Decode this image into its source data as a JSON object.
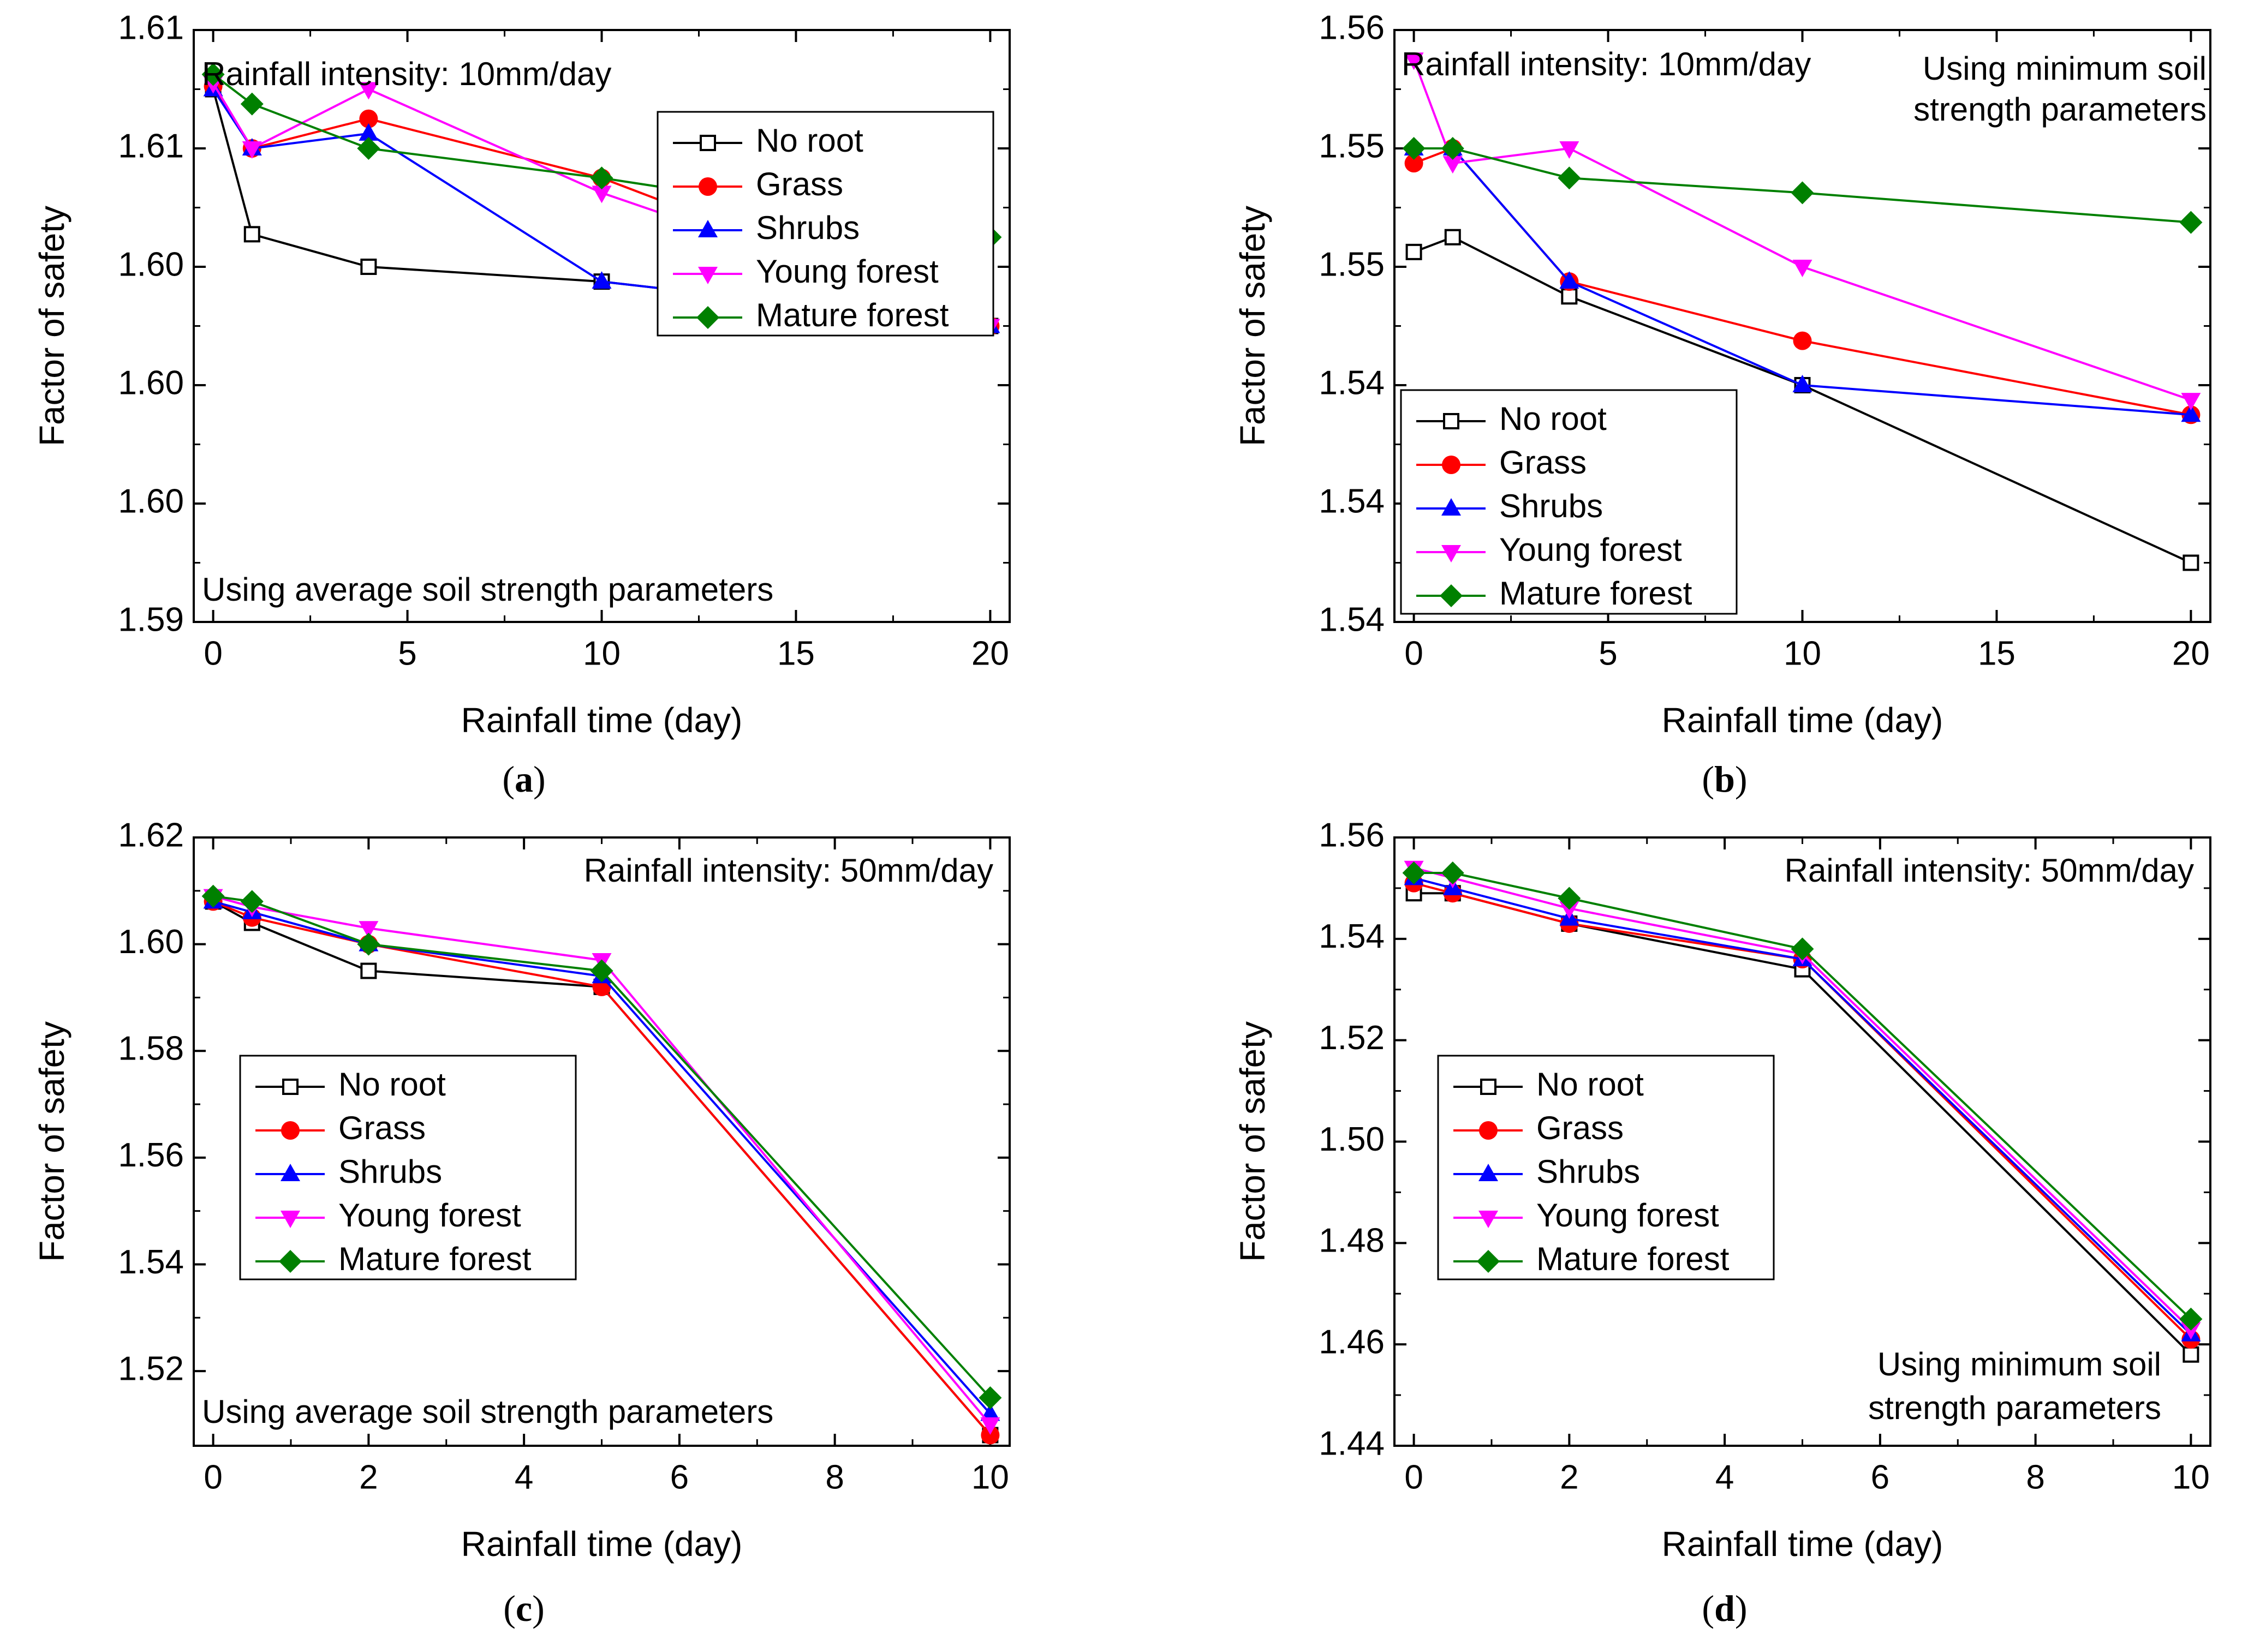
{
  "figure": {
    "panels": [
      {
        "letter": "a",
        "caption_open": "(",
        "caption_close": ")"
      },
      {
        "letter": "b",
        "caption_open": "(",
        "caption_close": ")"
      },
      {
        "letter": "c",
        "caption_open": "(",
        "caption_close": ")"
      },
      {
        "letter": "d",
        "caption_open": "(",
        "caption_close": ")"
      }
    ]
  },
  "chart_data": [
    {
      "type": "line",
      "id": "a",
      "xlabel": "Rainfall time (day)",
      "ylabel": "Factor of safety",
      "xlim": [
        -0.5,
        20.5
      ],
      "ylim": [
        1.59,
        1.61
      ],
      "xticks": [
        0,
        5,
        10,
        15,
        20
      ],
      "xtick_labels": [
        "0",
        "5",
        "10",
        "15",
        "20"
      ],
      "yticks": [
        1.59,
        1.594,
        1.598,
        1.602,
        1.606,
        1.61
      ],
      "ytick_labels": [
        "1.59",
        "1.60",
        "1.60",
        "1.60",
        "1.61",
        "1.61"
      ],
      "annotations": [
        "Rainfall intensity: 10mm/day",
        "Using average soil strength parameters"
      ],
      "legend_position": "top-right",
      "x": [
        0,
        1,
        4,
        10,
        20
      ],
      "series": [
        {
          "name": "No root",
          "color": "#000000",
          "marker": "square-open",
          "values": [
            1.608,
            1.6031,
            1.602,
            1.6015,
            1.6
          ]
        },
        {
          "name": "Grass",
          "color": "#ff0000",
          "marker": "circle",
          "values": [
            1.6081,
            1.606,
            1.607,
            1.605,
            1.6
          ]
        },
        {
          "name": "Shrubs",
          "color": "#0000ff",
          "marker": "triangle-up",
          "values": [
            1.608,
            1.606,
            1.6065,
            1.6015,
            1.6
          ]
        },
        {
          "name": "Young forest",
          "color": "#ff00ff",
          "marker": "triangle-down",
          "values": [
            1.6082,
            1.606,
            1.608,
            1.6045,
            1.6
          ]
        },
        {
          "name": "Mature forest",
          "color": "#008000",
          "marker": "diamond",
          "values": [
            1.6085,
            1.6075,
            1.606,
            1.605,
            1.603
          ]
        }
      ]
    },
    {
      "type": "line",
      "id": "b",
      "xlabel": "Rainfall time (day)",
      "ylabel": "Factor of safety",
      "xlim": [
        -0.5,
        20.5
      ],
      "ylim": [
        1.54,
        1.56
      ],
      "xticks": [
        0,
        5,
        10,
        15,
        20
      ],
      "xtick_labels": [
        "0",
        "5",
        "10",
        "15",
        "20"
      ],
      "yticks": [
        1.54,
        1.544,
        1.548,
        1.552,
        1.556,
        1.56
      ],
      "ytick_labels": [
        "1.54",
        "1.54",
        "1.54",
        "1.55",
        "1.55",
        "1.56"
      ],
      "annotations": [
        "Rainfall intensity: 10mm/day",
        "Using minimum soil",
        "strength parameters"
      ],
      "legend_position": "bottom-left",
      "x": [
        0,
        1,
        4,
        10,
        20
      ],
      "series": [
        {
          "name": "No root",
          "color": "#000000",
          "marker": "square-open",
          "values": [
            1.5525,
            1.553,
            1.551,
            1.548,
            1.542
          ]
        },
        {
          "name": "Grass",
          "color": "#ff0000",
          "marker": "circle",
          "values": [
            1.5555,
            1.556,
            1.5515,
            1.5495,
            1.547
          ]
        },
        {
          "name": "Shrubs",
          "color": "#0000ff",
          "marker": "triangle-up",
          "values": [
            1.556,
            1.556,
            1.5515,
            1.548,
            1.547
          ]
        },
        {
          "name": "Young forest",
          "color": "#ff00ff",
          "marker": "triangle-down",
          "values": [
            1.559,
            1.5555,
            1.556,
            1.552,
            1.5475
          ]
        },
        {
          "name": "Mature forest",
          "color": "#008000",
          "marker": "diamond",
          "values": [
            1.556,
            1.556,
            1.555,
            1.5545,
            1.5535
          ]
        }
      ]
    },
    {
      "type": "line",
      "id": "c",
      "xlabel": "Rainfall time (day)",
      "ylabel": "Factor of safety",
      "xlim": [
        -0.25,
        10.25
      ],
      "ylim": [
        1.506,
        1.62
      ],
      "xticks": [
        0,
        2,
        4,
        6,
        8,
        10
      ],
      "xtick_labels": [
        "0",
        "2",
        "4",
        "6",
        "8",
        "10"
      ],
      "yticks": [
        1.52,
        1.54,
        1.56,
        1.58,
        1.6,
        1.62
      ],
      "ytick_labels": [
        "1.52",
        "1.54",
        "1.56",
        "1.58",
        "1.60",
        "1.62"
      ],
      "annotations": [
        "Rainfall intensity: 50mm/day",
        "Using average soil strength parameters"
      ],
      "legend_position": "middle-left",
      "x": [
        0,
        0.5,
        2,
        5,
        10
      ],
      "series": [
        {
          "name": "No root",
          "color": "#000000",
          "marker": "square-open",
          "values": [
            1.608,
            1.604,
            1.595,
            1.592,
            1.508
          ]
        },
        {
          "name": "Grass",
          "color": "#ff0000",
          "marker": "circle",
          "values": [
            1.608,
            1.605,
            1.6,
            1.592,
            1.508
          ]
        },
        {
          "name": "Shrubs",
          "color": "#0000ff",
          "marker": "triangle-up",
          "values": [
            1.608,
            1.606,
            1.6,
            1.594,
            1.512
          ]
        },
        {
          "name": "Young forest",
          "color": "#ff00ff",
          "marker": "triangle-down",
          "values": [
            1.609,
            1.607,
            1.603,
            1.597,
            1.51
          ]
        },
        {
          "name": "Mature forest",
          "color": "#008000",
          "marker": "diamond",
          "values": [
            1.609,
            1.608,
            1.6,
            1.595,
            1.515
          ]
        }
      ]
    },
    {
      "type": "line",
      "id": "d",
      "xlabel": "Rainfall time (day)",
      "ylabel": "Factor of safety",
      "xlim": [
        -0.25,
        10.25
      ],
      "ylim": [
        1.44,
        1.56
      ],
      "xticks": [
        0,
        2,
        4,
        6,
        8,
        10
      ],
      "xtick_labels": [
        "0",
        "2",
        "4",
        "6",
        "8",
        "10"
      ],
      "yticks": [
        1.44,
        1.46,
        1.48,
        1.5,
        1.52,
        1.54,
        1.56
      ],
      "ytick_labels": [
        "1.44",
        "1.46",
        "1.48",
        "1.50",
        "1.52",
        "1.54",
        "1.56"
      ],
      "annotations": [
        "Rainfall intensity: 50mm/day",
        "Using minimum soil",
        "strength parameters"
      ],
      "legend_position": "middle-left",
      "x": [
        0,
        0.5,
        2,
        5,
        10
      ],
      "series": [
        {
          "name": "No root",
          "color": "#000000",
          "marker": "square-open",
          "values": [
            1.549,
            1.549,
            1.543,
            1.534,
            1.458
          ]
        },
        {
          "name": "Grass",
          "color": "#ff0000",
          "marker": "circle",
          "values": [
            1.551,
            1.549,
            1.543,
            1.536,
            1.461
          ]
        },
        {
          "name": "Shrubs",
          "color": "#0000ff",
          "marker": "triangle-up",
          "values": [
            1.552,
            1.55,
            1.544,
            1.536,
            1.462
          ]
        },
        {
          "name": "Young forest",
          "color": "#ff00ff",
          "marker": "triangle-down",
          "values": [
            1.554,
            1.552,
            1.546,
            1.537,
            1.463
          ]
        },
        {
          "name": "Mature forest",
          "color": "#008000",
          "marker": "diamond",
          "values": [
            1.553,
            1.553,
            1.548,
            1.538,
            1.465
          ]
        }
      ]
    }
  ]
}
